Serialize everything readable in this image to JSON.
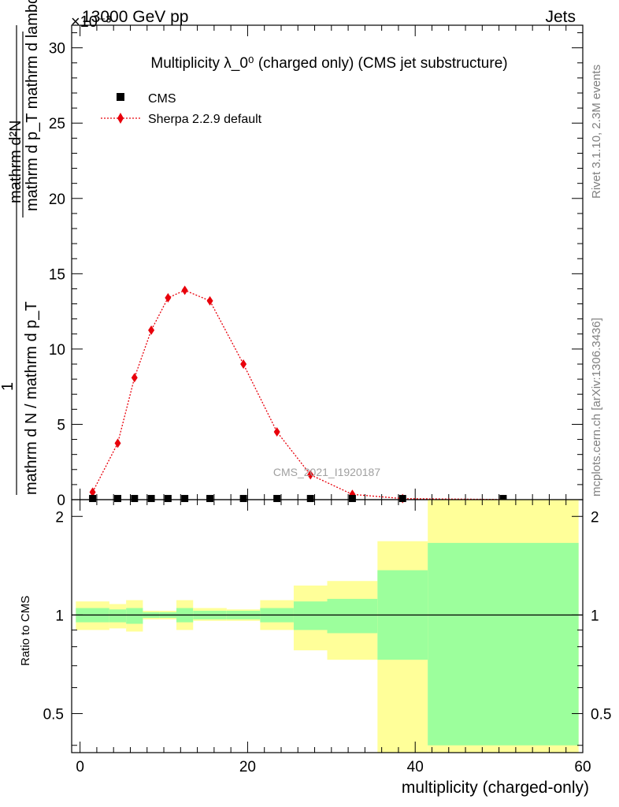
{
  "header": {
    "left": "13000 GeV pp",
    "right": "Jets",
    "exponent": "×10⁻³"
  },
  "side_labels": {
    "rivet": "Rivet 3.1.10,  2.3M events",
    "mcplots": "mcplots.cern.ch [arXiv:1306.3436]"
  },
  "chart_data": [
    {
      "type": "scatter",
      "title": "Multiplicity λ_0⁰ (charged only) (CMS jet substructure)",
      "xlabel": "multiplicity (charged-only)",
      "ylabel_numerator": "mathrm d²N",
      "ylabel_fraction_top": "mathrm d p_T mathrm d lambda",
      "ylabel_one": "1",
      "ylabel_fraction_bottom": "mathrm d N / mathrm d p_T",
      "xlim": [
        -1,
        60
      ],
      "ylim": [
        0,
        31.5
      ],
      "y_scale_note": "×10⁻³",
      "xticks": [
        0,
        20,
        40,
        60
      ],
      "yticks": [
        0,
        5,
        10,
        15,
        20,
        25,
        30
      ],
      "watermark": "CMS_2021_I1920187",
      "legend_position": "top-left",
      "series": [
        {
          "name": "CMS",
          "marker": "square",
          "color": "#000000",
          "x": [
            1.5,
            4.5,
            6.5,
            8.5,
            10.5,
            12.5,
            15.5,
            19.5,
            23.5,
            27.5,
            32.5,
            38.5,
            50.5
          ],
          "y": [
            0.05,
            0.05,
            0.05,
            0.05,
            0.05,
            0.05,
            0.05,
            0.05,
            0.05,
            0.05,
            0.05,
            0.05,
            0.05
          ]
        },
        {
          "name": "Sherpa 2.2.9 default",
          "marker": "diamond",
          "line": "dotted",
          "color": "#e8000b",
          "x": [
            1.5,
            4.5,
            6.5,
            8.5,
            10.5,
            12.5,
            15.5,
            19.5,
            23.5,
            27.5,
            32.5,
            38.5,
            50.5
          ],
          "y": [
            0.5,
            3.75,
            8.1,
            11.25,
            13.4,
            13.9,
            13.2,
            9.0,
            4.5,
            1.65,
            0.35,
            0.07,
            0.01
          ]
        }
      ]
    },
    {
      "type": "area",
      "ylabel": "Ratio to CMS",
      "xlim": [
        -1,
        60
      ],
      "ylim": [
        0.38,
        2.25
      ],
      "y_scale": "log",
      "yticks": [
        0.5,
        1,
        2
      ],
      "reference_line": 1,
      "band_colors": {
        "inner": "#9cff9c",
        "outer": "#ffff99"
      },
      "bins": [
        {
          "x0": -0.5,
          "x1": 3.5,
          "inner": [
            0.95,
            1.05
          ],
          "outer": [
            0.9,
            1.1
          ]
        },
        {
          "x0": 3.5,
          "x1": 5.5,
          "inner": [
            0.95,
            1.04
          ],
          "outer": [
            0.91,
            1.08
          ]
        },
        {
          "x0": 5.5,
          "x1": 7.5,
          "inner": [
            0.94,
            1.05
          ],
          "outer": [
            0.89,
            1.11
          ]
        },
        {
          "x0": 7.5,
          "x1": 9.5,
          "inner": [
            0.98,
            1.02
          ],
          "outer": [
            0.97,
            1.03
          ]
        },
        {
          "x0": 9.5,
          "x1": 11.5,
          "inner": [
            0.98,
            1.02
          ],
          "outer": [
            0.97,
            1.03
          ]
        },
        {
          "x0": 11.5,
          "x1": 13.5,
          "inner": [
            0.95,
            1.05
          ],
          "outer": [
            0.9,
            1.11
          ]
        },
        {
          "x0": 13.5,
          "x1": 17.5,
          "inner": [
            0.97,
            1.03
          ],
          "outer": [
            0.96,
            1.05
          ]
        },
        {
          "x0": 17.5,
          "x1": 21.5,
          "inner": [
            0.97,
            1.03
          ],
          "outer": [
            0.96,
            1.04
          ]
        },
        {
          "x0": 21.5,
          "x1": 25.5,
          "inner": [
            0.95,
            1.05
          ],
          "outer": [
            0.9,
            1.11
          ]
        },
        {
          "x0": 25.5,
          "x1": 29.5,
          "inner": [
            0.9,
            1.1
          ],
          "outer": [
            0.78,
            1.23
          ]
        },
        {
          "x0": 29.5,
          "x1": 35.5,
          "inner": [
            0.88,
            1.12
          ],
          "outer": [
            0.73,
            1.27
          ]
        },
        {
          "x0": 35.5,
          "x1": 41.5,
          "inner": [
            0.73,
            1.37
          ],
          "outer": [
            0.38,
            1.68
          ]
        },
        {
          "x0": 41.5,
          "x1": 59.5,
          "inner": [
            0.4,
            1.66
          ],
          "outer": [
            0.38,
            2.25
          ]
        }
      ]
    }
  ]
}
